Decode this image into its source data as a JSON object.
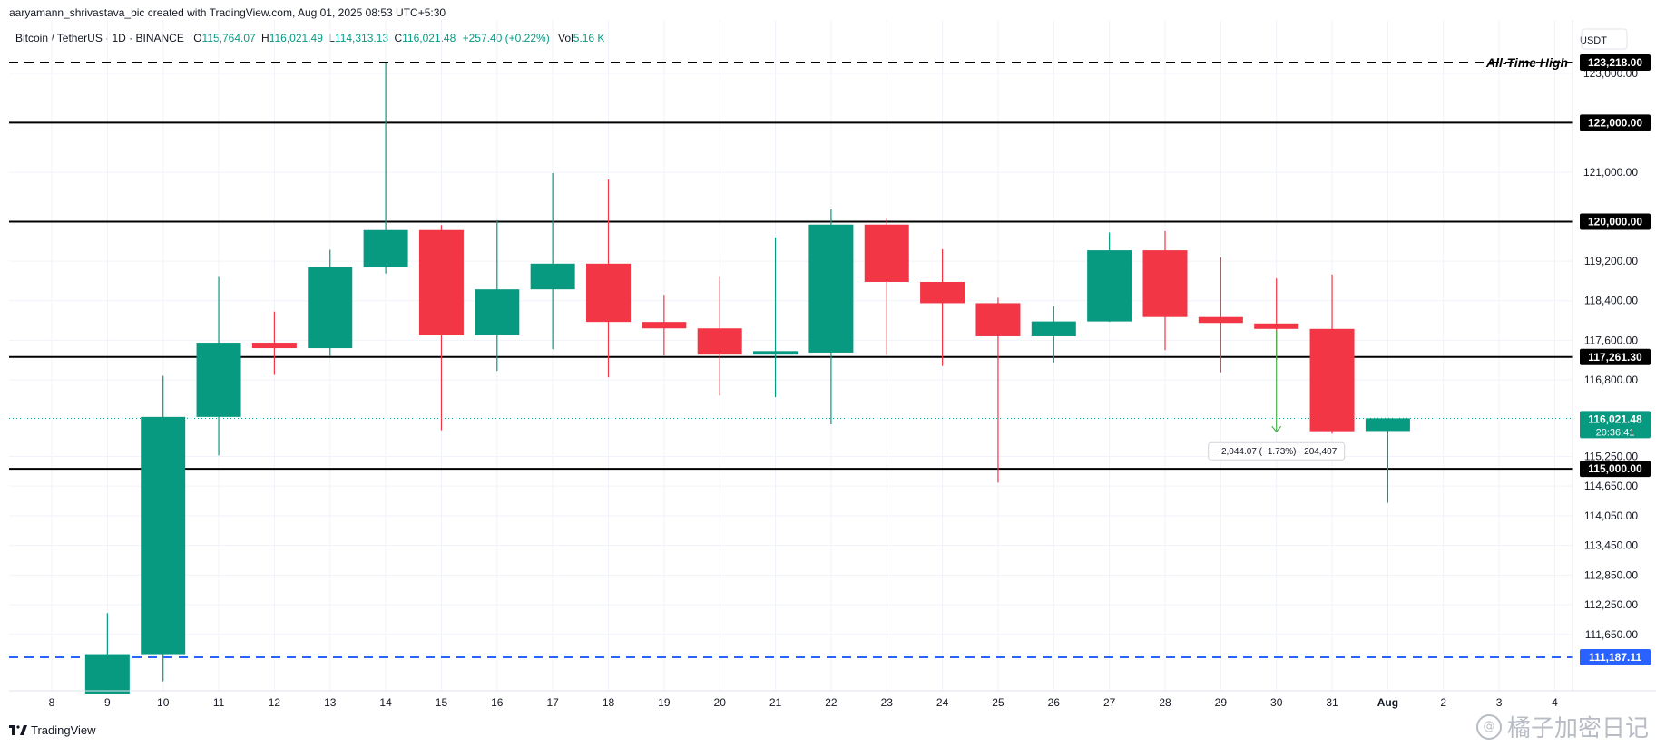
{
  "header": {
    "author_line": "aaryamann_shrivastava_bic created with TradingView.com, Aug 01, 2025 08:53 UTC+5:30"
  },
  "legend": {
    "symbol": "Bitcoin / TetherUS · 1D · BINANCE",
    "open_label": "O",
    "open": "115,764.07",
    "high_label": "H",
    "high": "116,021.49",
    "low_label": "L",
    "low": "114,313.13",
    "close_label": "C",
    "close": "116,021.48",
    "change": "+257.40 (+0.22%)",
    "vol_label": "Vol",
    "vol": "5.16 K"
  },
  "price_axis": {
    "currency": "USDT",
    "ticks": [
      "123,000.00",
      "121,000.00",
      "119,200.00",
      "118,400.00",
      "117,600.00",
      "116,800.00",
      "115,250.00",
      "114,650.00",
      "114,050.00",
      "113,450.00",
      "112,850.00",
      "112,250.00",
      "111,650.00"
    ]
  },
  "time_axis": {
    "labels": [
      "8",
      "9",
      "10",
      "11",
      "12",
      "13",
      "14",
      "15",
      "16",
      "17",
      "18",
      "19",
      "20",
      "21",
      "22",
      "23",
      "24",
      "25",
      "26",
      "27",
      "28",
      "29",
      "30",
      "31",
      "Aug",
      "2",
      "3",
      "4"
    ]
  },
  "levels": [
    {
      "value": 123218.0,
      "label": "123,218.00",
      "style": "dashed",
      "color": "#000000",
      "note": "All-Time High"
    },
    {
      "value": 122000.0,
      "label": "122,000.00",
      "style": "solid",
      "color": "#000000"
    },
    {
      "value": 120000.0,
      "label": "120,000.00",
      "style": "solid",
      "color": "#000000"
    },
    {
      "value": 117261.3,
      "label": "117,261.30",
      "style": "solid",
      "color": "#000000"
    },
    {
      "value": 115000.0,
      "label": "115,000.00",
      "style": "solid",
      "color": "#000000"
    },
    {
      "value": 111187.11,
      "label": "111,187.11",
      "style": "dashed",
      "color": "#2962ff"
    }
  ],
  "last_price": {
    "value": 116021.48,
    "label": "116,021.48",
    "countdown": "20:36:41",
    "color": "#089981"
  },
  "measure": {
    "text": "−2,044.07 (−1.73%) −204,407",
    "from_value": 117800,
    "to_value": 115750,
    "day": "30",
    "color": "#4caf50"
  },
  "colors": {
    "up": "#089981",
    "down": "#f23645",
    "grid": "#f0f3fa",
    "axis_text": "#131722"
  },
  "footer": {
    "logo_text": "TradingView",
    "watermark": "橘子加密日记"
  },
  "chart_data": {
    "type": "candlestick",
    "title": "Bitcoin / TetherUS · 1D · BINANCE",
    "xlabel": "",
    "ylabel": "USDT",
    "ylim": [
      110700,
      123300
    ],
    "grid": true,
    "candles": [
      {
        "x": "9",
        "open": 110450,
        "high": 112080,
        "low": 110450,
        "close": 111250
      },
      {
        "x": "10",
        "open": 111250,
        "high": 116880,
        "low": 110700,
        "close": 116050
      },
      {
        "x": "11",
        "open": 116050,
        "high": 118880,
        "low": 115270,
        "close": 117550
      },
      {
        "x": "12",
        "open": 117550,
        "high": 118180,
        "low": 116900,
        "close": 117440
      },
      {
        "x": "13",
        "open": 117440,
        "high": 119430,
        "low": 117280,
        "close": 119080
      },
      {
        "x": "14",
        "open": 119080,
        "high": 123218,
        "low": 118950,
        "close": 119830
      },
      {
        "x": "15",
        "open": 119830,
        "high": 119930,
        "low": 115780,
        "close": 117700
      },
      {
        "x": "16",
        "open": 117700,
        "high": 120030,
        "low": 116980,
        "close": 118630
      },
      {
        "x": "17",
        "open": 118630,
        "high": 120980,
        "low": 117420,
        "close": 119150
      },
      {
        "x": "18",
        "open": 119150,
        "high": 120850,
        "low": 116850,
        "close": 117970
      },
      {
        "x": "19",
        "open": 117970,
        "high": 118520,
        "low": 117290,
        "close": 117840
      },
      {
        "x": "20",
        "open": 117840,
        "high": 118880,
        "low": 116480,
        "close": 117310
      },
      {
        "x": "21",
        "open": 117310,
        "high": 119680,
        "low": 116450,
        "close": 117380
      },
      {
        "x": "22",
        "open": 117350,
        "high": 120250,
        "low": 115900,
        "close": 119940
      },
      {
        "x": "23",
        "open": 119940,
        "high": 120070,
        "low": 117300,
        "close": 118780
      },
      {
        "x": "24",
        "open": 118780,
        "high": 119440,
        "low": 117080,
        "close": 118350
      },
      {
        "x": "25",
        "open": 118350,
        "high": 118460,
        "low": 114720,
        "close": 117680
      },
      {
        "x": "26",
        "open": 117680,
        "high": 118290,
        "low": 117150,
        "close": 117980
      },
      {
        "x": "27",
        "open": 117980,
        "high": 119780,
        "low": 117970,
        "close": 119420
      },
      {
        "x": "28",
        "open": 119420,
        "high": 119810,
        "low": 117400,
        "close": 118070
      },
      {
        "x": "29",
        "open": 118070,
        "high": 119280,
        "low": 116950,
        "close": 117950
      },
      {
        "x": "30",
        "open": 117940,
        "high": 118850,
        "low": 117200,
        "close": 117830
      },
      {
        "x": "31",
        "open": 117830,
        "high": 118930,
        "low": 115710,
        "close": 115760
      },
      {
        "x": "Aug",
        "open": 115764.07,
        "high": 116021.49,
        "low": 114313.13,
        "close": 116021.48
      }
    ]
  }
}
